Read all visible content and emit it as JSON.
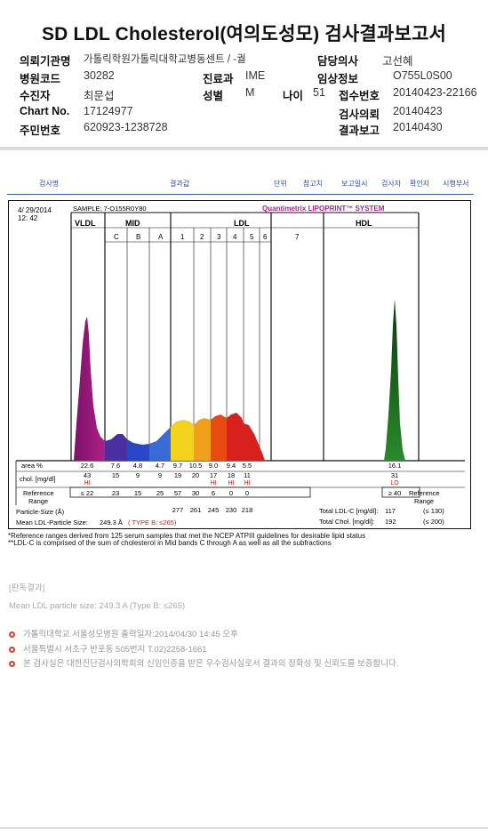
{
  "title": "SD LDL Cholesterol(여의도성모) 검사결과보고서",
  "info": {
    "institution_label": "의뢰기관명",
    "institution_value": "가톨릭학원가톨릭대학교병동센트 / -궐",
    "doctor_label": "담당의사",
    "doctor_value": "고선혜",
    "hospital_code_label": "병원코드",
    "hospital_code_value": "30282",
    "dept_label": "진료과",
    "dept_value": "IME",
    "clinical_label": "임상정보",
    "clinical_value": "O755L0S00",
    "patient_label": "수진자",
    "patient_value": "최문섭",
    "sex_label": "성별",
    "sex_value": "M",
    "age_label": "나이",
    "age_value": "51",
    "receipt_label": "접수번호",
    "receipt_value": "20140423-22166",
    "chart_label": "Chart No.",
    "chart_value": "17124977",
    "request_label": "검사의뢰",
    "request_value": "20140423",
    "rrn_label": "주민번호",
    "rrn_value": "620923-1238728",
    "report_label": "결과보고",
    "report_value": "20140430"
  },
  "header_columns": [
    "검사명",
    "결과값",
    "단위",
    "참고치",
    "보고일시",
    "검사자",
    "확인자",
    "시행부서"
  ],
  "chart_data": {
    "type": "area",
    "date": "4/ 29/2014",
    "time": "12: 42",
    "sample": "SAMPLE:   7-O155R0Y80",
    "brand": "Quantimetrix LIPOPRINT™ SYSTEM",
    "regions": [
      "VLDL",
      "MID",
      "LDL",
      "HDL"
    ],
    "bands": [
      "C",
      "B",
      "A",
      "1",
      "2",
      "3",
      "4",
      "5",
      "6",
      "7"
    ],
    "colors": {
      "vldl": "#9c1a78",
      "midC": "#4b2ea0",
      "midB": "#2848c8",
      "midA": "#3a6ad8",
      "ldl1": "#f2d21c",
      "ldl2": "#f0a01a",
      "ldl3": "#e84a12",
      "ldl4": "#d8201c",
      "ldl5": "#d8201c",
      "hdl": "#2a7a2a",
      "hdl_dark": "#0e3e14"
    },
    "area_label": "area %",
    "area_values": [
      "22.6",
      "7.6",
      "4.8",
      "4.7",
      "9.7",
      "10.5",
      "9.0",
      "9.4",
      "5.5",
      "",
      "16.1"
    ],
    "chol_label": "chol. [mg/dl]",
    "chol_values": [
      "43",
      "15",
      "9",
      "9",
      "19",
      "20",
      "17",
      "18",
      "11",
      "",
      "31"
    ],
    "chol_flags": [
      "HI",
      "",
      "",
      "",
      "",
      "",
      "HI",
      "HI",
      "HI",
      "",
      "LO"
    ],
    "ref_label_1": "Reference",
    "ref_label_2": "Range",
    "ref_values": [
      "≤ 22",
      "23",
      "15",
      "25",
      "57",
      "30",
      "6",
      "0",
      "0",
      "",
      "≥ 40"
    ],
    "ref_right_1": "Reference",
    "ref_right_2": "Range",
    "particle_label": "Particle-Size (Å)",
    "particle_values": [
      "277",
      "261",
      "245",
      "230",
      "218"
    ],
    "mean_label": "Mean LDL-Particle Size:",
    "mean_value": "249.3 Å",
    "mean_type": "( TYPE B; ≤265)",
    "total_ldl_label": "Total LDL-C [mg/dl]:",
    "total_ldl_value": "117",
    "total_ldl_ref": "(≤ 130)",
    "total_chol_label": "Total Chol. [mg/dl]:",
    "total_chol_value": "192",
    "total_chol_ref": "(≤ 200)"
  },
  "notes": {
    "note1": "*Reference ranges derived from 125 serum samples that met the NCEP ATPIII guidelines for desirable lipid status",
    "note2": "**LDL-C is comprised of the sum of cholesterol in Mid bands C through A as well as all the subfractions"
  },
  "judgement": {
    "title": "[판독결과]",
    "text": "Mean LDL particle size: 249.3 A  (Type B: ≤265)"
  },
  "footer": {
    "line1": "가톨릭대학교 서울성모병원       출력일자:2014/04/30 14:45 오후",
    "line2": "서울특별시 서초구 반포동 505번지 T.02)2258-1661",
    "line3": "본 검사실은 대한진단검사의학회의 신임인증을 받은 우수검사실로서 결과의 정확성 및 신뢰도를 보증합니다."
  }
}
